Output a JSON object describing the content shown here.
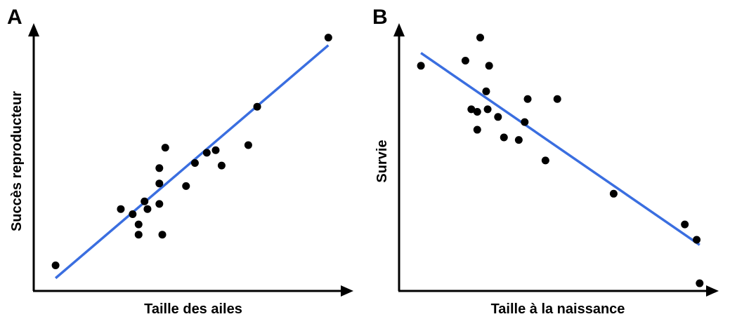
{
  "colors": {
    "fit": "#3a6ee0",
    "points": "#000000",
    "axes": "#000000"
  },
  "chart_data": [
    {
      "type": "scatter",
      "panel_label": "A",
      "xlabel": "Taille des ailes",
      "ylabel": "Succès reproducteur",
      "xlim": [
        0,
        10
      ],
      "ylim": [
        0,
        10
      ],
      "trend": {
        "x": [
          0.5,
          9.7
        ],
        "y": [
          0.5,
          9.6
        ]
      },
      "points": [
        {
          "x": 0.5,
          "y": 1.0
        },
        {
          "x": 2.7,
          "y": 3.2
        },
        {
          "x": 3.1,
          "y": 3.0
        },
        {
          "x": 3.3,
          "y": 2.6
        },
        {
          "x": 3.3,
          "y": 2.2
        },
        {
          "x": 3.5,
          "y": 3.5
        },
        {
          "x": 3.6,
          "y": 3.2
        },
        {
          "x": 4.0,
          "y": 3.4
        },
        {
          "x": 4.1,
          "y": 2.2
        },
        {
          "x": 4.0,
          "y": 4.2
        },
        {
          "x": 4.0,
          "y": 4.8
        },
        {
          "x": 4.2,
          "y": 5.6
        },
        {
          "x": 4.9,
          "y": 4.1
        },
        {
          "x": 5.2,
          "y": 5.0
        },
        {
          "x": 5.6,
          "y": 5.4
        },
        {
          "x": 5.9,
          "y": 5.5
        },
        {
          "x": 6.1,
          "y": 4.9
        },
        {
          "x": 7.0,
          "y": 5.7
        },
        {
          "x": 7.3,
          "y": 7.2
        },
        {
          "x": 9.7,
          "y": 9.9
        }
      ]
    },
    {
      "type": "scatter",
      "panel_label": "B",
      "xlabel": "Taille à la naissance",
      "ylabel": "Survie",
      "xlim": [
        0,
        10
      ],
      "ylim": [
        0,
        10
      ],
      "trend": {
        "x": [
          0.5,
          9.9
        ],
        "y": [
          9.3,
          1.8
        ]
      },
      "points": [
        {
          "x": 0.5,
          "y": 8.8
        },
        {
          "x": 2.0,
          "y": 9.0
        },
        {
          "x": 2.5,
          "y": 9.9
        },
        {
          "x": 2.8,
          "y": 8.8
        },
        {
          "x": 2.7,
          "y": 7.8
        },
        {
          "x": 2.2,
          "y": 7.1
        },
        {
          "x": 2.4,
          "y": 7.0
        },
        {
          "x": 2.75,
          "y": 7.1
        },
        {
          "x": 3.1,
          "y": 6.8
        },
        {
          "x": 2.4,
          "y": 6.3
        },
        {
          "x": 3.3,
          "y": 6.0
        },
        {
          "x": 3.8,
          "y": 5.9
        },
        {
          "x": 4.0,
          "y": 6.6
        },
        {
          "x": 4.1,
          "y": 7.5
        },
        {
          "x": 5.1,
          "y": 7.5
        },
        {
          "x": 4.7,
          "y": 5.1
        },
        {
          "x": 7.0,
          "y": 3.8
        },
        {
          "x": 9.4,
          "y": 2.6
        },
        {
          "x": 9.8,
          "y": 2.0
        },
        {
          "x": 9.9,
          "y": 0.3
        }
      ]
    }
  ]
}
